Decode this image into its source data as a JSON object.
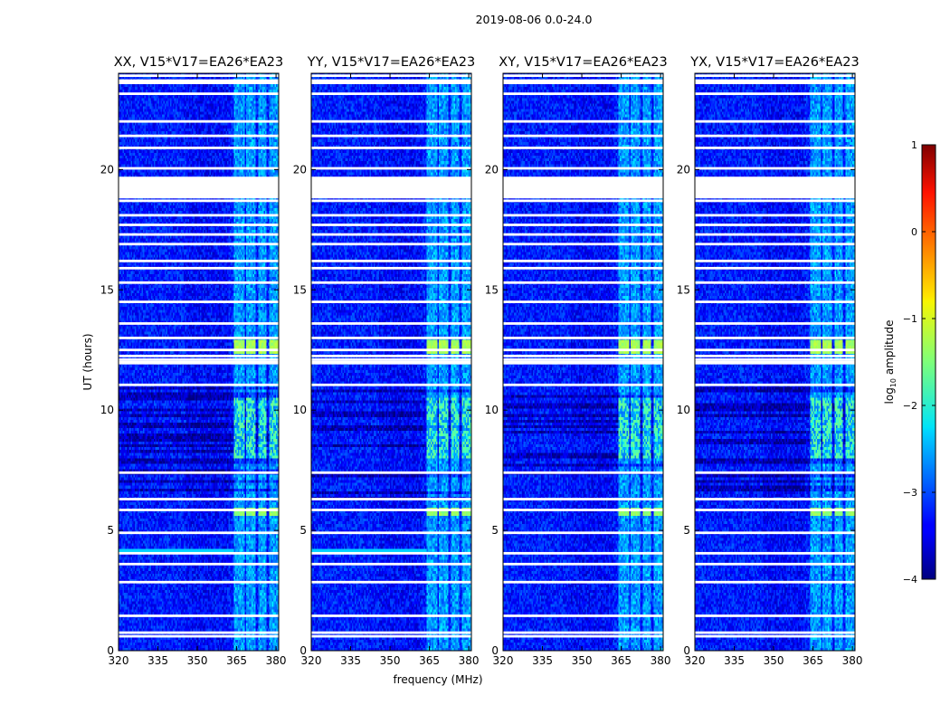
{
  "figure": {
    "suptitle": "2019-08-06 0.0-24.0",
    "xlabel": "frequency (MHz)",
    "ylabel": "UT (hours)"
  },
  "colormap": "jet",
  "chart_data": {
    "type": "heatmap",
    "x_range": [
      320,
      381
    ],
    "y_range": [
      0,
      24
    ],
    "x_ticks": [
      320,
      335,
      350,
      365,
      380
    ],
    "y_ticks": [
      0,
      5,
      10,
      15,
      20
    ],
    "x_unit": "MHz",
    "y_unit": "hours",
    "bright_channel_bands_mhz": [
      [
        364,
        368
      ],
      [
        368.5,
        372
      ],
      [
        373,
        376.5
      ],
      [
        377.5,
        381
      ]
    ],
    "flagged_ut_hours": [
      0.6,
      0.75,
      1.45,
      2.85,
      3.6,
      4.05,
      4.9,
      5.85,
      6.3,
      7.4,
      11.05,
      12.1,
      12.25,
      12.5,
      13.0,
      13.6,
      14.5,
      15.3,
      15.9,
      16.2,
      16.9,
      17.3,
      17.7,
      18.1,
      18.7,
      19.0,
      19.3,
      19.55,
      19.65,
      20.05,
      20.9,
      21.4,
      22.0,
      23.15,
      23.9
    ],
    "rfi_events_ut_hours": [
      {
        "start": 5.6,
        "end": 5.9,
        "level": -1.4
      },
      {
        "start": 12.3,
        "end": 12.9,
        "level": -1.3
      },
      {
        "start": 8.0,
        "end": 10.5,
        "level": -1.7
      }
    ],
    "panels": [
      {
        "title": "XX, V15*V17=EA26*EA23"
      },
      {
        "title": "YY, V15*V17=EA26*EA23"
      },
      {
        "title": "XY, V15*V17=EA26*EA23"
      },
      {
        "title": "YX, V15*V17=EA26*EA23"
      }
    ],
    "colorbar": {
      "label": "log10 amplitude",
      "label_base": "log",
      "label_sub": "10",
      "label_rest": " amplitude",
      "range": [
        -4,
        1
      ],
      "ticks": [
        1,
        0,
        -1,
        -2,
        -3,
        -4
      ],
      "tick_labels": [
        "1",
        "0",
        "−1",
        "−2",
        "−3",
        "−4"
      ]
    }
  }
}
